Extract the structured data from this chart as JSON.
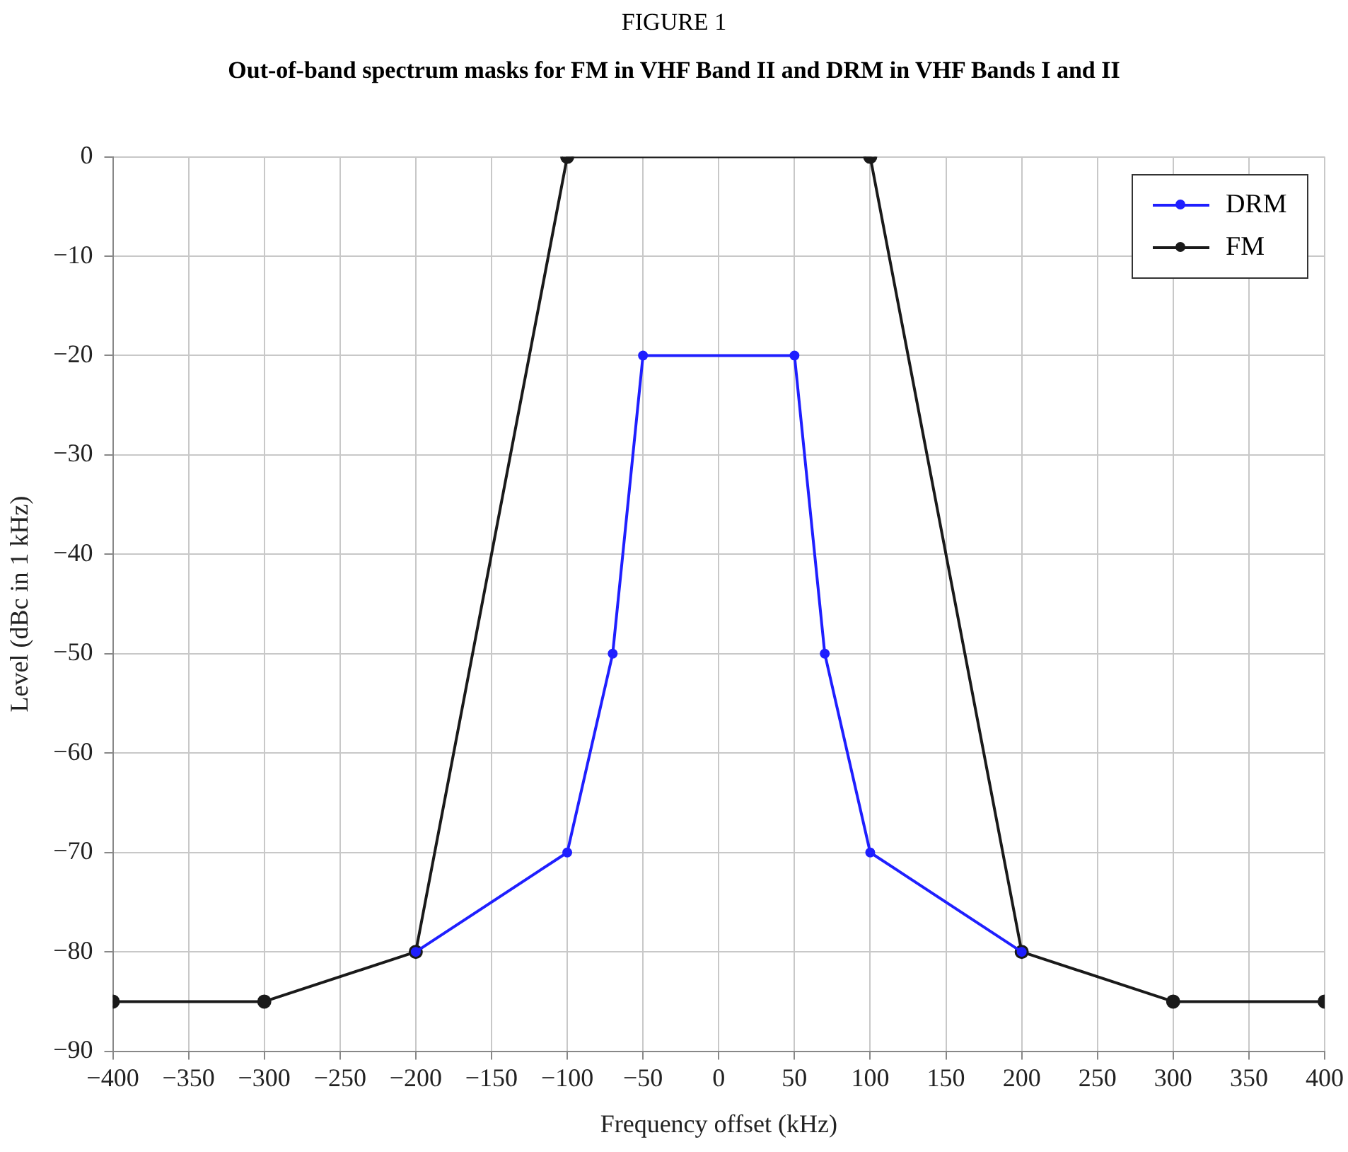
{
  "chart_data": {
    "type": "line",
    "title": "FIGURE 1",
    "subtitle": "Out-of-band spectrum masks for FM in VHF Band II and DRM in VHF Bands I and II",
    "xlabel": "Frequency offset (kHz)",
    "ylabel": "Level (dBc in 1 kHz)",
    "series": [
      {
        "name": "DRM",
        "color": "#1f1fff",
        "x": [
          -200,
          -100,
          -70,
          -50,
          50,
          70,
          100,
          200
        ],
        "values": [
          -80,
          -70,
          -50,
          -20,
          -20,
          -50,
          -70,
          -80
        ]
      },
      {
        "name": "FM",
        "color": "#1a1a1a",
        "x": [
          -400,
          -300,
          -200,
          -100,
          100,
          200,
          300,
          400
        ],
        "values": [
          -85,
          -85,
          -80,
          0,
          0,
          -80,
          -85,
          -85
        ]
      }
    ],
    "xlim": [
      -400,
      400
    ],
    "xticks": [
      -400,
      -350,
      -300,
      -250,
      -200,
      -150,
      -100,
      -50,
      0,
      50,
      100,
      150,
      200,
      250,
      300,
      350,
      400
    ],
    "ylim": [
      -90,
      0
    ],
    "yticks": [
      -90,
      -80,
      -70,
      -60,
      -50,
      -40,
      -30,
      -20,
      -10,
      0
    ],
    "grid": true,
    "legend": "top right",
    "marker": "circle",
    "line_style": "solid"
  }
}
